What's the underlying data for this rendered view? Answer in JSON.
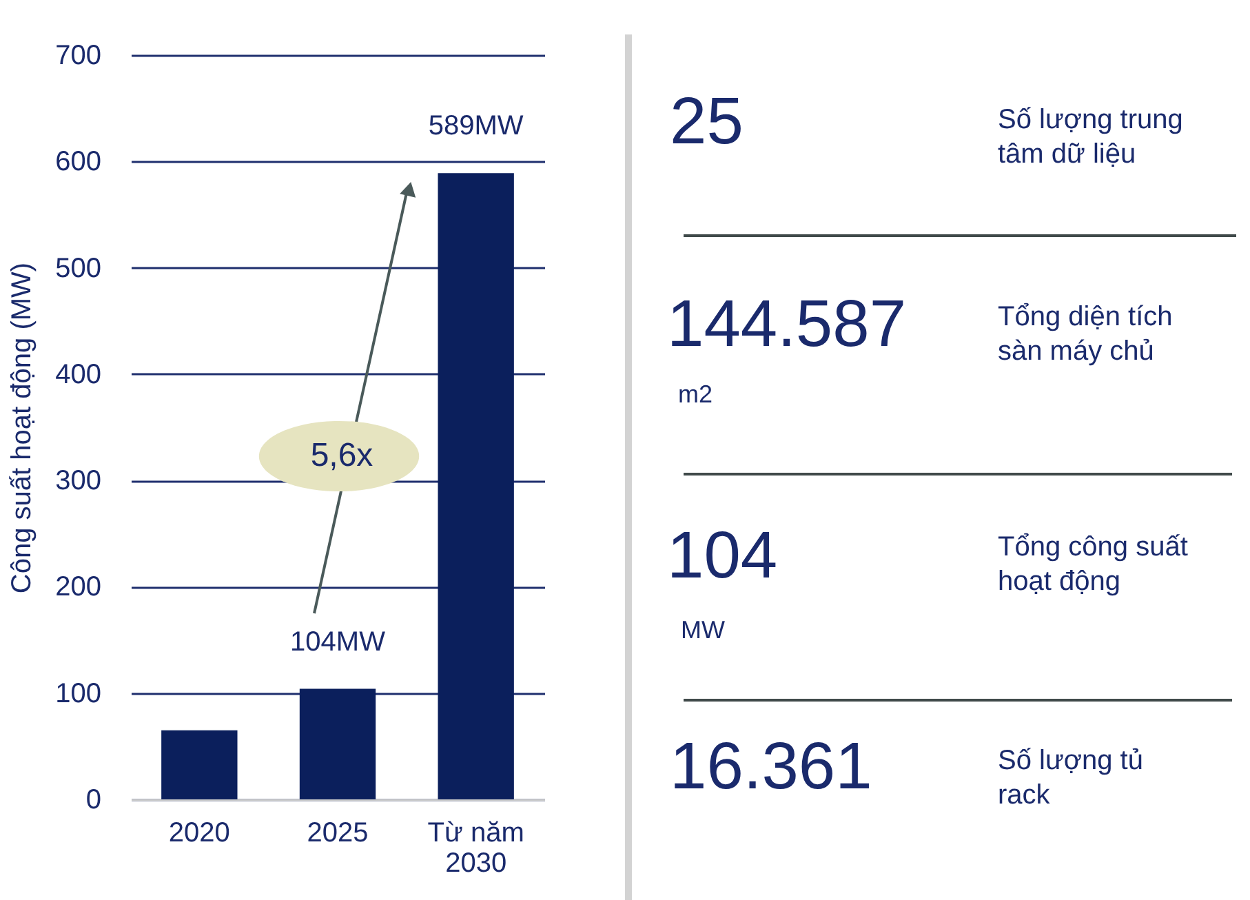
{
  "chart_data": [
    {
      "type": "bar",
      "ylabel": "Công suất hoạt động (MW)",
      "categories": [
        "2020",
        "2025",
        "Từ năm\n2030"
      ],
      "values": [
        65,
        104,
        589
      ],
      "color": "#0b1f5c",
      "value_labels": [
        null,
        "104MW",
        "589MW"
      ],
      "ylim": [
        0,
        700
      ],
      "yticks": [
        0,
        100,
        200,
        300,
        400,
        500,
        600,
        700
      ],
      "grid": "y",
      "annotations": [
        "5,6x"
      ]
    },
    {
      "type": "other",
      "annotations": [
        "25",
        "Số lượng trung\ntâm dữ liệu",
        "144.587",
        "m2",
        "Tổng diện tích\nsàn máy chủ",
        "104",
        "MW",
        "Tổng công suất\nhoạt động",
        "16.361",
        "Số lượng tủ\nrack"
      ]
    }
  ]
}
